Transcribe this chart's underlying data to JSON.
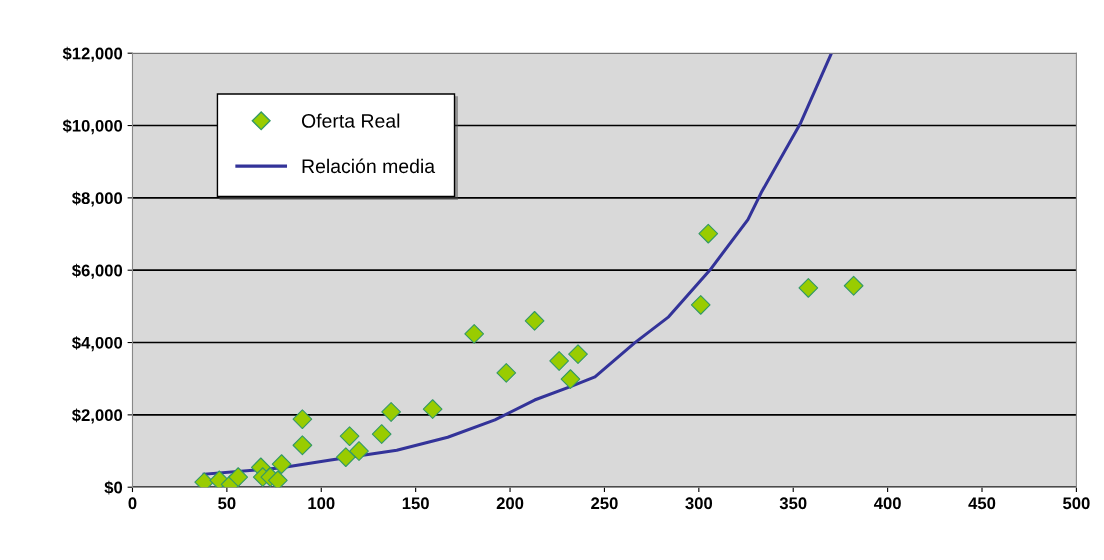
{
  "chart_data": {
    "type": "scatter",
    "xlim": [
      0,
      500
    ],
    "xticks": [
      0,
      50,
      100,
      150,
      200,
      250,
      300,
      350,
      400,
      450,
      500
    ],
    "ylim": [
      0,
      12000
    ],
    "yticks": [
      {
        "value": 0,
        "label": "$0"
      },
      {
        "value": 2000,
        "label": "$2,000"
      },
      {
        "value": 4000,
        "label": "$4,000"
      },
      {
        "value": 6000,
        "label": "$6,000"
      },
      {
        "value": 8000,
        "label": "$8,000"
      },
      {
        "value": 10000,
        "label": "$10,000"
      },
      {
        "value": 12000,
        "label": "$12,000"
      }
    ],
    "grid": "y",
    "legend": "top left",
    "series": [
      {
        "name": "Oferta Real",
        "marker": "diamond",
        "color": "#99cc00",
        "x": [
          38,
          46,
          52,
          56,
          68,
          69,
          73,
          77,
          79,
          90,
          90,
          113,
          115,
          120,
          132,
          137,
          159,
          181,
          198,
          213,
          226,
          232,
          236,
          301,
          305,
          358,
          382
        ],
        "values": [
          140,
          190,
          80,
          280,
          550,
          280,
          280,
          190,
          640,
          1880,
          1160,
          830,
          1410,
          1000,
          1470,
          2080,
          2160,
          4240,
          3160,
          4600,
          3490,
          2990,
          3680,
          5040,
          7010,
          5510,
          5570
        ]
      },
      {
        "name": "Relación media",
        "type": "line",
        "marker": "none",
        "line_style": "solid",
        "color": "#333399",
        "x": [
          38,
          78,
          105,
          140,
          167,
          192,
          213,
          232,
          245,
          266,
          284,
          306,
          326,
          333,
          354,
          370
        ],
        "values": [
          360,
          530,
          750,
          1020,
          1380,
          1860,
          2410,
          2780,
          3050,
          3990,
          4710,
          6010,
          7400,
          8140,
          10080,
          11970
        ]
      }
    ]
  }
}
